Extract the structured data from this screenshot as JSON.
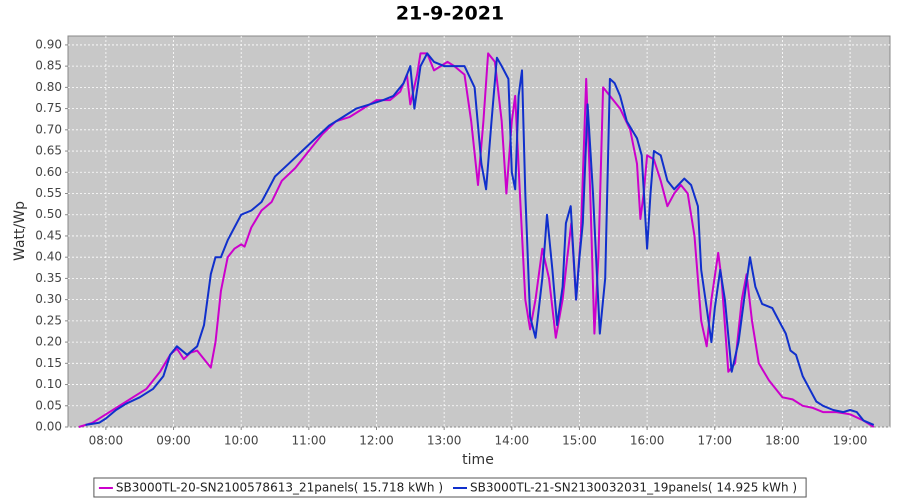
{
  "chart_data": {
    "type": "line",
    "title": "21-9-2021",
    "x_label": "time",
    "y_label": "Watt/Wp",
    "xlim": [
      7.44,
      19.59
    ],
    "ylim": [
      0,
      0.921
    ],
    "grid": true,
    "xticks": [
      {
        "value": 8,
        "label": "08:00"
      },
      {
        "value": 9,
        "label": "09:00"
      },
      {
        "value": 10,
        "label": "10:00"
      },
      {
        "value": 11,
        "label": "11:00"
      },
      {
        "value": 12,
        "label": "12:00"
      },
      {
        "value": 13,
        "label": "13:00"
      },
      {
        "value": 14,
        "label": "14:00"
      },
      {
        "value": 15,
        "label": "15:00"
      },
      {
        "value": 16,
        "label": "16:00"
      },
      {
        "value": 17,
        "label": "17:00"
      },
      {
        "value": 18,
        "label": "18:00"
      },
      {
        "value": 19,
        "label": "19:00"
      }
    ],
    "yticks": [
      {
        "value": 0,
        "label": "0.00"
      },
      {
        "value": 0.05,
        "label": "0.05"
      },
      {
        "value": 0.1,
        "label": "0.10"
      },
      {
        "value": 0.15,
        "label": "0.15"
      },
      {
        "value": 0.2,
        "label": "0.20"
      },
      {
        "value": 0.25,
        "label": "0.25"
      },
      {
        "value": 0.3,
        "label": "0.30"
      },
      {
        "value": 0.35,
        "label": "0.35"
      },
      {
        "value": 0.4,
        "label": "0.40"
      },
      {
        "value": 0.45,
        "label": "0.45"
      },
      {
        "value": 0.5,
        "label": "0.50"
      },
      {
        "value": 0.55,
        "label": "0.55"
      },
      {
        "value": 0.6,
        "label": "0.60"
      },
      {
        "value": 0.65,
        "label": "0.65"
      },
      {
        "value": 0.7,
        "label": "0.70"
      },
      {
        "value": 0.75,
        "label": "0.75"
      },
      {
        "value": 0.8,
        "label": "0.80"
      },
      {
        "value": 0.85,
        "label": "0.85"
      },
      {
        "value": 0.9,
        "label": "0.90"
      }
    ],
    "series": [
      {
        "name": "SB3000TL-20-SN2100578613_21panels( 15.718 kWh )",
        "color": "#cc00cc",
        "x": [
          7.6,
          7.8,
          8.0,
          8.2,
          8.4,
          8.6,
          8.8,
          8.95,
          9.05,
          9.15,
          9.25,
          9.35,
          9.45,
          9.55,
          9.62,
          9.7,
          9.8,
          9.9,
          10.0,
          10.05,
          10.15,
          10.3,
          10.45,
          10.6,
          10.8,
          11.0,
          11.2,
          11.4,
          11.6,
          11.8,
          12.0,
          12.2,
          12.35,
          12.45,
          12.5,
          12.6,
          12.65,
          12.75,
          12.85,
          12.95,
          13.05,
          13.15,
          13.3,
          13.4,
          13.5,
          13.58,
          13.65,
          13.75,
          13.85,
          13.92,
          14.0,
          14.05,
          14.12,
          14.2,
          14.27,
          14.35,
          14.45,
          14.55,
          14.65,
          14.75,
          14.82,
          14.88,
          14.95,
          15.02,
          15.1,
          15.15,
          15.22,
          15.28,
          15.35,
          15.45,
          15.6,
          15.75,
          15.85,
          15.9,
          15.95,
          16.0,
          16.1,
          16.2,
          16.3,
          16.4,
          16.5,
          16.6,
          16.7,
          16.8,
          16.88,
          16.95,
          17.05,
          17.1,
          17.2,
          17.3,
          17.4,
          17.47,
          17.55,
          17.65,
          17.8,
          18.0,
          18.15,
          18.3,
          18.45,
          18.6,
          18.8,
          19.0,
          19.2,
          19.35
        ],
        "values": [
          0,
          0.01,
          0.03,
          0.05,
          0.07,
          0.09,
          0.13,
          0.17,
          0.185,
          0.16,
          0.175,
          0.18,
          0.16,
          0.14,
          0.2,
          0.32,
          0.4,
          0.42,
          0.43,
          0.425,
          0.47,
          0.51,
          0.53,
          0.58,
          0.61,
          0.65,
          0.69,
          0.72,
          0.73,
          0.75,
          0.77,
          0.77,
          0.79,
          0.83,
          0.76,
          0.83,
          0.88,
          0.88,
          0.84,
          0.85,
          0.86,
          0.85,
          0.83,
          0.72,
          0.57,
          0.72,
          0.88,
          0.86,
          0.72,
          0.55,
          0.72,
          0.78,
          0.55,
          0.3,
          0.23,
          0.3,
          0.42,
          0.35,
          0.21,
          0.3,
          0.4,
          0.48,
          0.3,
          0.45,
          0.82,
          0.6,
          0.22,
          0.4,
          0.8,
          0.78,
          0.75,
          0.7,
          0.62,
          0.49,
          0.55,
          0.64,
          0.63,
          0.58,
          0.52,
          0.55,
          0.57,
          0.55,
          0.45,
          0.25,
          0.19,
          0.3,
          0.41,
          0.35,
          0.13,
          0.15,
          0.3,
          0.36,
          0.25,
          0.15,
          0.11,
          0.07,
          0.065,
          0.05,
          0.045,
          0.035,
          0.035,
          0.03,
          0.015,
          0
        ]
      },
      {
        "name": "SB3000TL-21-SN2130032031_19panels( 14.925 kWh )",
        "color": "#1030cc",
        "x": [
          7.7,
          7.9,
          8.0,
          8.15,
          8.3,
          8.5,
          8.7,
          8.85,
          8.95,
          9.05,
          9.2,
          9.35,
          9.45,
          9.55,
          9.62,
          9.7,
          9.8,
          9.9,
          10.0,
          10.15,
          10.3,
          10.4,
          10.5,
          10.7,
          10.9,
          11.1,
          11.3,
          11.5,
          11.7,
          11.9,
          12.1,
          12.25,
          12.4,
          12.5,
          12.56,
          12.65,
          12.75,
          12.85,
          13.0,
          13.15,
          13.3,
          13.45,
          13.55,
          13.62,
          13.7,
          13.78,
          13.85,
          13.95,
          14.0,
          14.05,
          14.1,
          14.15,
          14.2,
          14.27,
          14.35,
          14.45,
          14.52,
          14.6,
          14.67,
          14.75,
          14.8,
          14.87,
          14.95,
          15.0,
          15.05,
          15.12,
          15.2,
          15.3,
          15.38,
          15.45,
          15.52,
          15.6,
          15.7,
          15.85,
          15.92,
          16.0,
          16.05,
          16.1,
          16.2,
          16.3,
          16.4,
          16.55,
          16.65,
          16.75,
          16.8,
          16.88,
          16.95,
          17.0,
          17.08,
          17.15,
          17.25,
          17.35,
          17.45,
          17.52,
          17.6,
          17.7,
          17.85,
          17.95,
          18.05,
          18.12,
          18.2,
          18.3,
          18.4,
          18.5,
          18.6,
          18.75,
          18.9,
          19.0,
          19.1,
          19.2,
          19.35
        ],
        "values": [
          0.005,
          0.01,
          0.02,
          0.04,
          0.055,
          0.07,
          0.09,
          0.12,
          0.17,
          0.19,
          0.17,
          0.19,
          0.24,
          0.36,
          0.4,
          0.4,
          0.44,
          0.47,
          0.5,
          0.51,
          0.53,
          0.56,
          0.59,
          0.62,
          0.65,
          0.68,
          0.71,
          0.73,
          0.75,
          0.76,
          0.77,
          0.78,
          0.81,
          0.85,
          0.75,
          0.85,
          0.88,
          0.86,
          0.85,
          0.85,
          0.85,
          0.8,
          0.62,
          0.56,
          0.72,
          0.87,
          0.85,
          0.82,
          0.6,
          0.56,
          0.78,
          0.84,
          0.55,
          0.26,
          0.21,
          0.35,
          0.5,
          0.37,
          0.24,
          0.33,
          0.48,
          0.52,
          0.3,
          0.4,
          0.48,
          0.76,
          0.55,
          0.22,
          0.35,
          0.82,
          0.81,
          0.78,
          0.72,
          0.68,
          0.64,
          0.42,
          0.55,
          0.65,
          0.64,
          0.58,
          0.56,
          0.585,
          0.57,
          0.52,
          0.37,
          0.28,
          0.2,
          0.28,
          0.37,
          0.3,
          0.13,
          0.2,
          0.32,
          0.4,
          0.33,
          0.29,
          0.28,
          0.25,
          0.22,
          0.18,
          0.17,
          0.12,
          0.09,
          0.06,
          0.05,
          0.04,
          0.035,
          0.04,
          0.035,
          0.015,
          0.005
        ]
      }
    ]
  }
}
